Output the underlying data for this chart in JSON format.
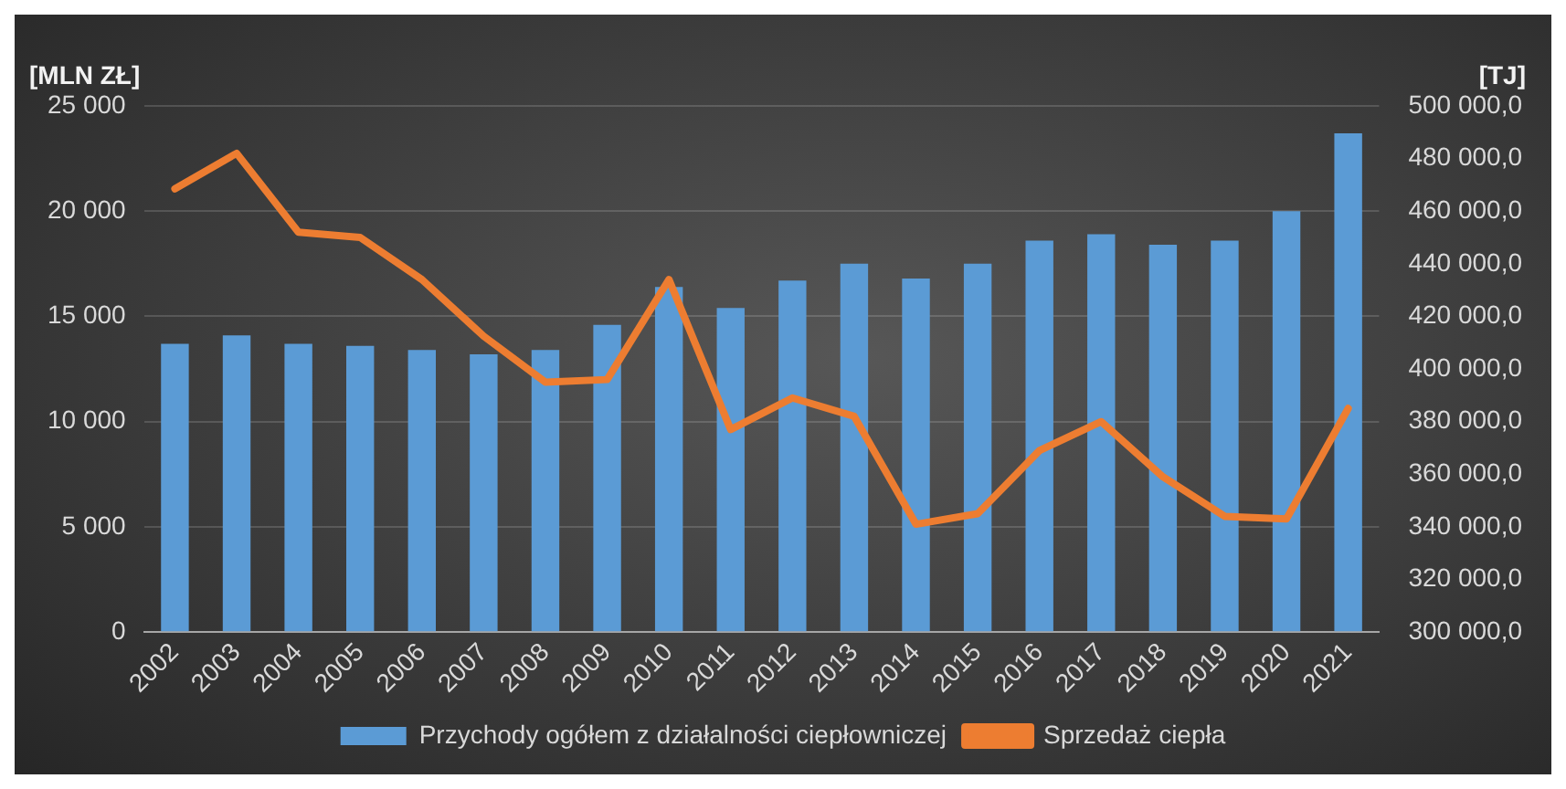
{
  "chart_data": {
    "type": "bar",
    "ylabel": "[MLN ZŁ]",
    "y2label": "[TJ]",
    "categories": [
      "2002",
      "2003",
      "2004",
      "2005",
      "2006",
      "2007",
      "2008",
      "2009",
      "2010",
      "2011",
      "2012",
      "2013",
      "2014",
      "2015",
      "2016",
      "2017",
      "2018",
      "2019",
      "2020",
      "2021"
    ],
    "series": [
      {
        "name": "Przychody ogółem z działalności ciepłowniczej",
        "color": "#5b9bd5",
        "values": [
          13700,
          14100,
          13700,
          13600,
          13400,
          13200,
          13400,
          14600,
          16400,
          15400,
          16700,
          17500,
          16800,
          17500,
          18600,
          18900,
          18400,
          18600,
          20000,
          23700
        ]
      },
      {
        "name": "Sprzedaż ciepła",
        "type": "line",
        "axis": "y2",
        "color": "#ed7d31",
        "values": [
          468500,
          482000,
          452000,
          450000,
          434000,
          412500,
          395000,
          396000,
          434000,
          377000,
          389000,
          382000,
          341000,
          345000,
          369000,
          380000,
          359000,
          344000,
          343000,
          385000
        ]
      }
    ],
    "ylim": [
      0,
      25000
    ],
    "yticks": [
      0,
      {
        "value": 5000,
        "label": "5 000"
      },
      {
        "value": 10000,
        "label": "10 000"
      },
      {
        "value": 15000,
        "label": "15 000"
      },
      {
        "value": 20000,
        "label": "20 000"
      },
      {
        "value": 25000,
        "label": "25 000"
      }
    ],
    "y2lim": [
      300000,
      500000
    ],
    "y2ticks": [
      {
        "value": 300000,
        "label": "300 000,0"
      },
      {
        "value": 320000,
        "label": "320 000,0"
      },
      {
        "value": 340000,
        "label": "340 000,0"
      },
      {
        "value": 360000,
        "label": "360 000,0"
      },
      {
        "value": 380000,
        "label": "380 000,0"
      },
      {
        "value": 400000,
        "label": "400 000,0"
      },
      {
        "value": 420000,
        "label": "420 000,0"
      },
      {
        "value": 440000,
        "label": "440 000,0"
      },
      {
        "value": 460000,
        "label": "460 000,0"
      },
      {
        "value": 480000,
        "label": "480 000,0"
      },
      {
        "value": 500000,
        "label": "500 000,0"
      }
    ],
    "grid": "y",
    "legend": "bottom",
    "marker": "none",
    "line_style": "solid"
  }
}
